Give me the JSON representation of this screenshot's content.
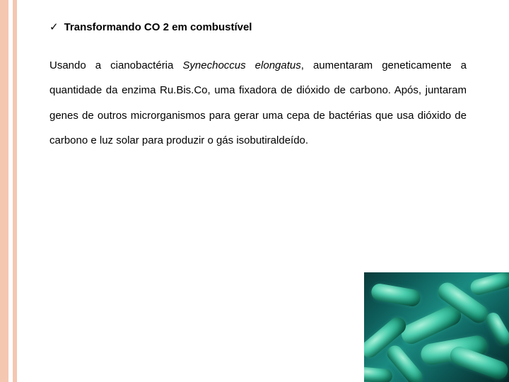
{
  "bullet": {
    "check_glyph": "✓",
    "title": "Transformando CO 2 em combustível"
  },
  "paragraph": {
    "part1": "Usando a cianobactéria ",
    "italic": "Synechoccus elongatus",
    "part2": ", aumentaram geneticamente a quantidade da enzima Ru.Bis.Co, uma fixadora de dióxido de carbono. Após, juntaram genes de outros microrganismos para gerar uma cepa de bactérias que usa dióxido de carbono e luz solar para produzir o gás isobutiraldeído."
  },
  "colors": {
    "stripe": "#f4c7b0",
    "text": "#000000",
    "background": "#ffffff"
  },
  "image": {
    "semantic": "cyanobacteria-micrograph"
  }
}
